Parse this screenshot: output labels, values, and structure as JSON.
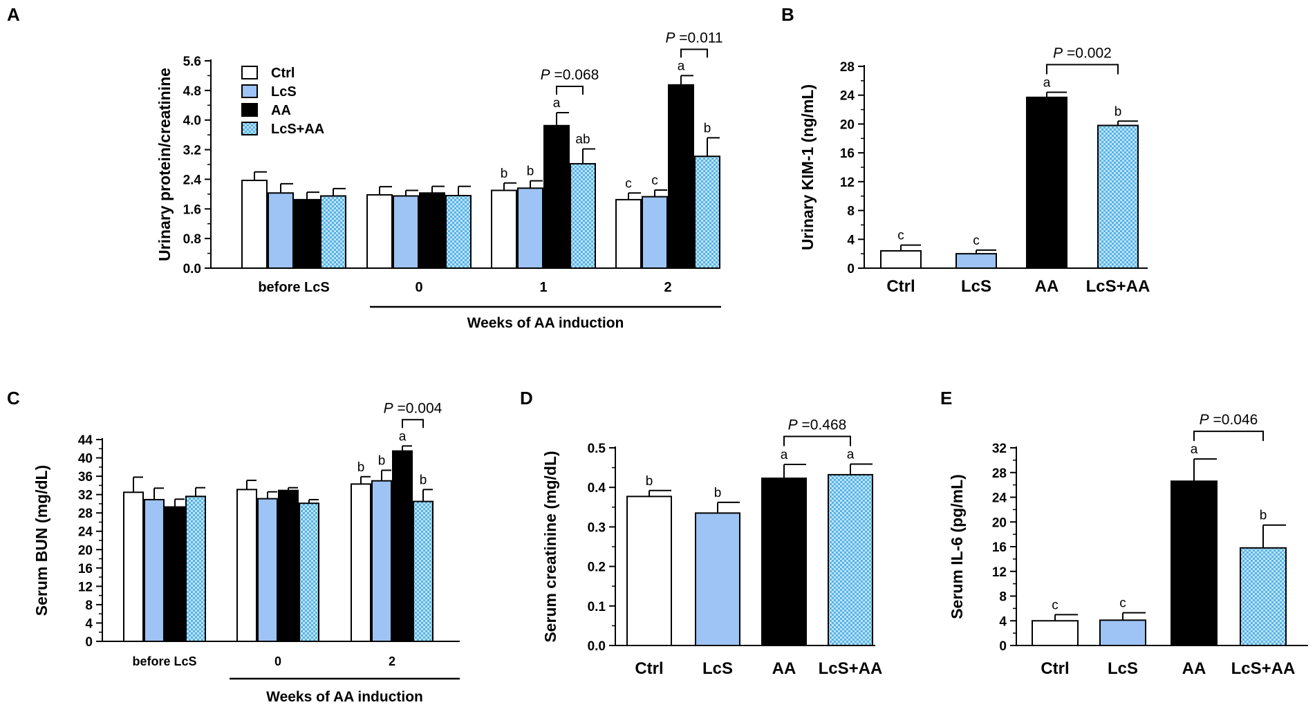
{
  "colors": {
    "Ctrl": "#ffffff",
    "LcS": "#9ec3f5",
    "AA": "#000000",
    "LcS+AA": "#56b3e6",
    "LcS+AA_check": "#bfe3f7"
  },
  "chart_data": [
    {
      "panel": "A",
      "type": "bar",
      "ylabel": "Urinary protein/creatinine",
      "xlabel": "Weeks of AA induction",
      "ylim": [
        0,
        5.6
      ],
      "yticks": [
        "0.0",
        "0.8",
        "1.6",
        "2.4",
        "3.2",
        "4.0",
        "4.8",
        "5.6"
      ],
      "categories": [
        "before LcS",
        "0",
        "1",
        "2"
      ],
      "legend": [
        "Ctrl",
        "LcS",
        "AA",
        "LcS+AA"
      ],
      "series": [
        {
          "name": "Ctrl",
          "values": [
            2.37,
            1.98,
            2.1,
            1.85
          ],
          "errors": [
            0.23,
            0.22,
            0.2,
            0.18
          ],
          "letters": [
            "",
            "",
            "b",
            "c"
          ]
        },
        {
          "name": "LcS",
          "values": [
            2.03,
            1.95,
            2.16,
            1.93
          ],
          "errors": [
            0.25,
            0.15,
            0.2,
            0.18
          ],
          "letters": [
            "",
            "",
            "b",
            "c"
          ]
        },
        {
          "name": "AA",
          "values": [
            1.85,
            2.03,
            3.85,
            4.95
          ],
          "errors": [
            0.2,
            0.18,
            0.35,
            0.25
          ],
          "letters": [
            "",
            "",
            "a",
            "a"
          ]
        },
        {
          "name": "LcS+AA",
          "values": [
            1.95,
            1.96,
            2.82,
            3.02
          ],
          "errors": [
            0.2,
            0.25,
            0.4,
            0.5
          ],
          "letters": [
            "",
            "",
            "ab",
            "b"
          ]
        }
      ],
      "pvalues": [
        {
          "category": "1",
          "p_label": "P",
          "p_value": "=0.068"
        },
        {
          "category": "2",
          "p_label": "P",
          "p_value": "=0.011"
        }
      ]
    },
    {
      "panel": "B",
      "type": "bar",
      "ylabel": "Urinary KIM-1 (ng/mL)",
      "xlabel": "",
      "ylim": [
        0,
        28
      ],
      "yticks": [
        "0",
        "4",
        "8",
        "12",
        "16",
        "20",
        "24",
        "28"
      ],
      "categories": [
        "Ctrl",
        "LcS",
        "AA",
        "LcS+AA"
      ],
      "values": [
        2.4,
        2.0,
        23.7,
        19.8
      ],
      "errors": [
        0.8,
        0.5,
        0.7,
        0.6
      ],
      "letters": [
        "c",
        "c",
        "a",
        "b"
      ],
      "pvalues": [
        {
          "p_label": "P",
          "p_value": "=0.002"
        }
      ]
    },
    {
      "panel": "C",
      "type": "bar",
      "ylabel": "Serum BUN (mg/dL)",
      "xlabel": "Weeks of AA induction",
      "ylim": [
        0,
        44
      ],
      "yticks": [
        "0",
        "4",
        "8",
        "12",
        "16",
        "20",
        "24",
        "28",
        "32",
        "36",
        "40",
        "44"
      ],
      "categories": [
        "before LcS",
        "0",
        "2"
      ],
      "series": [
        {
          "name": "Ctrl",
          "values": [
            32.5,
            33.1,
            34.3
          ],
          "errors": [
            3.3,
            2.0,
            1.6
          ],
          "letters": [
            "",
            "",
            "b"
          ]
        },
        {
          "name": "LcS",
          "values": [
            30.9,
            31.1,
            35.0
          ],
          "errors": [
            2.5,
            1.5,
            2.3
          ],
          "letters": [
            "",
            "",
            "b"
          ]
        },
        {
          "name": "AA",
          "values": [
            29.3,
            32.9,
            41.5
          ],
          "errors": [
            1.7,
            0.6,
            1.1
          ],
          "letters": [
            "",
            "",
            "a"
          ]
        },
        {
          "name": "LcS+AA",
          "values": [
            31.6,
            30.1,
            30.5
          ],
          "errors": [
            1.9,
            0.8,
            2.6
          ],
          "letters": [
            "",
            "",
            "b"
          ]
        }
      ],
      "pvalues": [
        {
          "category": "2",
          "p_label": "P",
          "p_value": "=0.004"
        }
      ]
    },
    {
      "panel": "D",
      "type": "bar",
      "ylabel": "Serum creatinine (mg/dL)",
      "xlabel": "",
      "ylim": [
        0,
        0.5
      ],
      "yticks": [
        "0.0",
        "0.1",
        "0.2",
        "0.3",
        "0.4",
        "0.5"
      ],
      "categories": [
        "Ctrl",
        "LcS",
        "AA",
        "LcS+AA"
      ],
      "values": [
        0.377,
        0.335,
        0.423,
        0.432
      ],
      "errors": [
        0.015,
        0.027,
        0.035,
        0.027
      ],
      "letters": [
        "b",
        "b",
        "a",
        "a"
      ],
      "pvalues": [
        {
          "p_label": "P",
          "p_value": "=0.468"
        }
      ]
    },
    {
      "panel": "E",
      "type": "bar",
      "ylabel": "Serum IL-6 (pg/mL)",
      "xlabel": "",
      "ylim": [
        0,
        32
      ],
      "yticks": [
        "0",
        "4",
        "8",
        "12",
        "16",
        "20",
        "24",
        "28",
        "32"
      ],
      "categories": [
        "Ctrl",
        "LcS",
        "AA",
        "LcS+AA"
      ],
      "values": [
        4.0,
        4.1,
        26.6,
        15.8
      ],
      "errors": [
        1.0,
        1.2,
        3.6,
        3.7
      ],
      "letters": [
        "c",
        "c",
        "a",
        "b"
      ],
      "pvalues": [
        {
          "p_label": "P",
          "p_value": "=0.046"
        }
      ]
    }
  ]
}
